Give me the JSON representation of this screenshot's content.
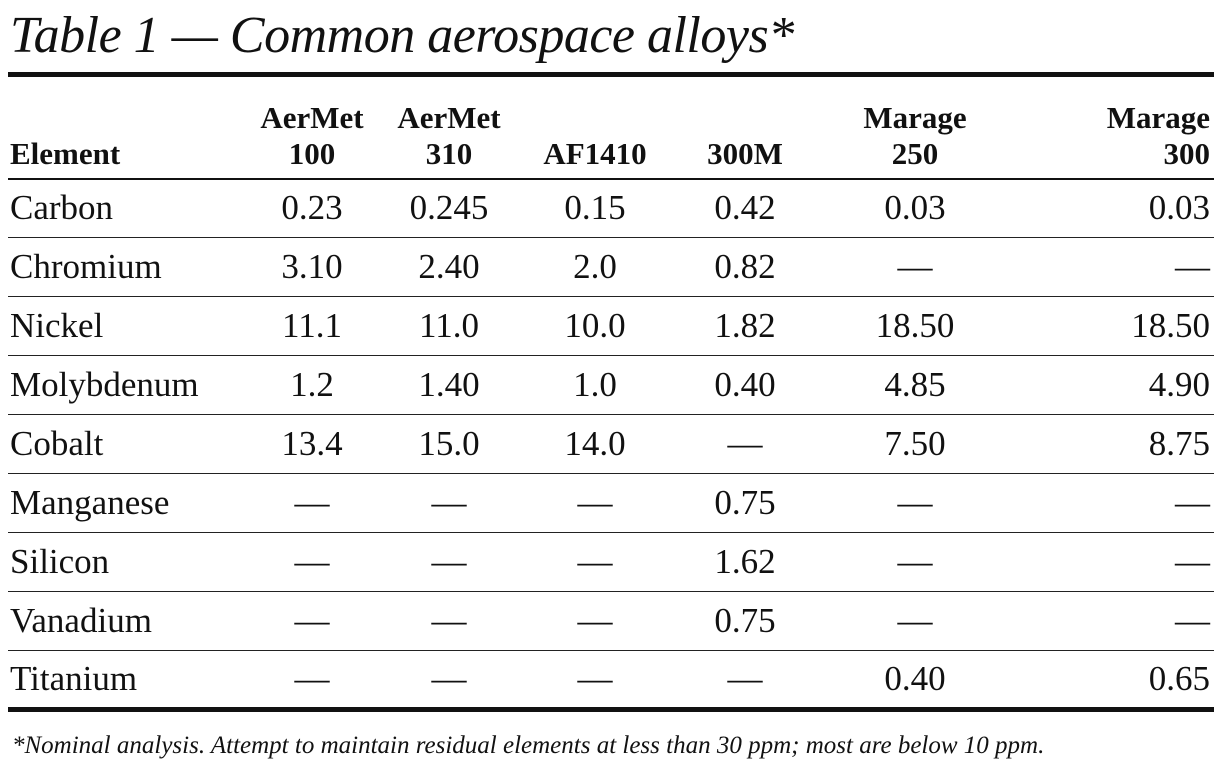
{
  "title": "Table 1 — Common aerospace alloys*",
  "columns": [
    {
      "line1": "",
      "line2": "Element"
    },
    {
      "line1": "AerMet",
      "line2": "100"
    },
    {
      "line1": "AerMet",
      "line2": "310"
    },
    {
      "line1": "",
      "line2": "AF1410"
    },
    {
      "line1": "",
      "line2": "300M"
    },
    {
      "line1": "Marage",
      "line2": "250"
    },
    {
      "line1": "Marage",
      "line2": "300"
    }
  ],
  "rows": [
    [
      "Carbon",
      "0.23",
      "0.245",
      "0.15",
      "0.42",
      "0.03",
      "0.03"
    ],
    [
      "Chromium",
      "3.10",
      "2.40",
      "2.0",
      "0.82",
      "—",
      "—"
    ],
    [
      "Nickel",
      "11.1",
      "11.0",
      "10.0",
      "1.82",
      "18.50",
      "18.50"
    ],
    [
      "Molybdenum",
      "1.2",
      "1.40",
      "1.0",
      "0.40",
      "4.85",
      "4.90"
    ],
    [
      "Cobalt",
      "13.4",
      "15.0",
      "14.0",
      "—",
      "7.50",
      "8.75"
    ],
    [
      "Manganese",
      "—",
      "—",
      "—",
      "0.75",
      "—",
      "—"
    ],
    [
      "Silicon",
      "—",
      "—",
      "—",
      "1.62",
      "—",
      "—"
    ],
    [
      "Vanadium",
      "—",
      "—",
      "—",
      "0.75",
      "—",
      "—"
    ],
    [
      "Titanium",
      "—",
      "—",
      "—",
      "—",
      "0.40",
      "0.65"
    ]
  ],
  "footnote": "*Nominal analysis. Attempt to maintain residual elements at less than 30 ppm; most are below 10 ppm."
}
